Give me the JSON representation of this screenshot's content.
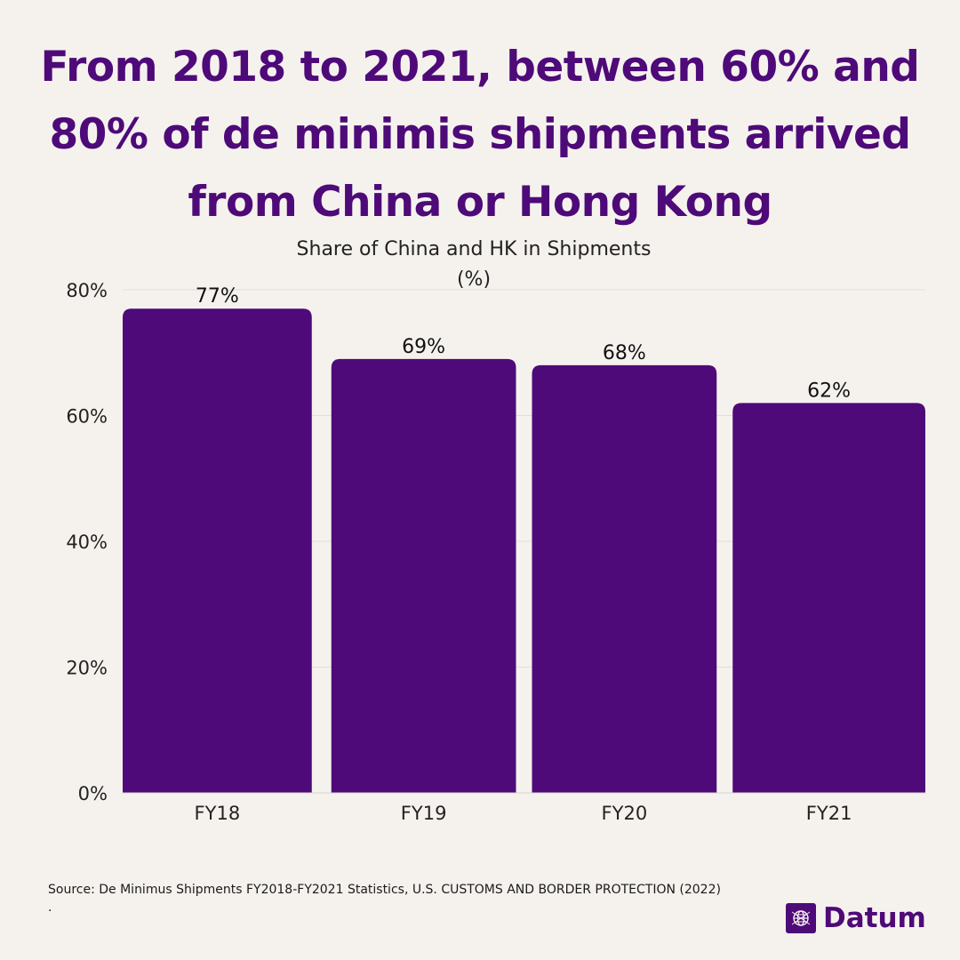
{
  "title_lines": [
    "From 2018 to 2021, between 60% and",
    "80% of de minimis shipments arrived",
    "from China or Hong Kong"
  ],
  "chart_data": {
    "type": "bar",
    "title": "Share of China and HK in Shipments",
    "subtitle": "(%)",
    "categories": [
      "FY18",
      "FY19",
      "FY20",
      "FY21"
    ],
    "values": [
      77,
      69,
      68,
      62
    ],
    "data_labels": [
      "77%",
      "69%",
      "68%",
      "62%"
    ],
    "ylim": [
      0,
      80
    ],
    "yticks": [
      0,
      20,
      40,
      60,
      80
    ],
    "ytick_labels": [
      "0%",
      "20%",
      "40%",
      "60%",
      "80%"
    ],
    "grid": true,
    "bar_color": "#4e0a78"
  },
  "source": "Source: De Minimus Shipments FY2018-FY2021 Statistics, U.S. CUSTOMS AND BORDER PROTECTION (2022)",
  "source_trailer": ".",
  "brand": {
    "name": "Datum",
    "icon": "globe-icon",
    "color": "#4e0a78"
  }
}
